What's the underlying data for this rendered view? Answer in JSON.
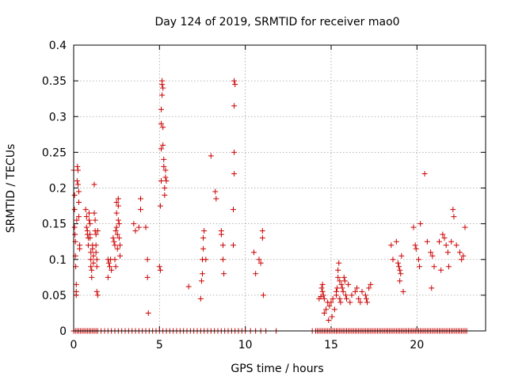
{
  "chart_data": {
    "type": "scatter",
    "title": "Day 124 of 2019, SRMTID for receiver mao0",
    "xlabel": "GPS time / hours",
    "ylabel": "SRMTID / TECUs",
    "xlim": [
      0,
      24
    ],
    "ylim": [
      0,
      0.4
    ],
    "xticks": [
      0,
      5,
      10,
      15,
      20
    ],
    "yticks": [
      0,
      0.05,
      0.1,
      0.15,
      0.2,
      0.25,
      0.3,
      0.35,
      0.4
    ],
    "xtick_labels": [
      "0",
      "5",
      "10",
      "15",
      "20"
    ],
    "ytick_labels": [
      "0",
      "0.05",
      "0.1",
      "0.15",
      "0.2",
      "0.25",
      "0.3",
      "0.35",
      "0.4"
    ],
    "grid": true,
    "marker": "+",
    "color": "#cc0000",
    "series": [
      {
        "name": "SRMTID",
        "points": [
          [
            0.0,
            0.225
          ],
          [
            0.05,
            0.19
          ],
          [
            0.05,
            0.17
          ],
          [
            0.05,
            0.145
          ],
          [
            0.08,
            0.135
          ],
          [
            0.1,
            0.125
          ],
          [
            0.1,
            0.105
          ],
          [
            0.12,
            0.09
          ],
          [
            0.15,
            0.065
          ],
          [
            0.15,
            0.055
          ],
          [
            0.15,
            0.05
          ],
          [
            0.18,
            0.155
          ],
          [
            0.2,
            0.21
          ],
          [
            0.22,
            0.23
          ],
          [
            0.25,
            0.225
          ],
          [
            0.25,
            0.205
          ],
          [
            0.3,
            0.195
          ],
          [
            0.3,
            0.18
          ],
          [
            0.3,
            0.16
          ],
          [
            0.35,
            0.12
          ],
          [
            0.35,
            0.115
          ],
          [
            0.7,
            0.17
          ],
          [
            0.75,
            0.16
          ],
          [
            0.75,
            0.145
          ],
          [
            0.8,
            0.14
          ],
          [
            0.8,
            0.135
          ],
          [
            0.85,
            0.13
          ],
          [
            0.85,
            0.12
          ],
          [
            0.9,
            0.165
          ],
          [
            0.9,
            0.155
          ],
          [
            0.95,
            0.15
          ],
          [
            0.95,
            0.135
          ],
          [
            0.95,
            0.13
          ],
          [
            1.0,
            0.11
          ],
          [
            1.0,
            0.1
          ],
          [
            1.0,
            0.09
          ],
          [
            1.05,
            0.085
          ],
          [
            1.05,
            0.075
          ],
          [
            1.1,
            0.12
          ],
          [
            1.1,
            0.115
          ],
          [
            1.15,
            0.105
          ],
          [
            1.15,
            0.095
          ],
          [
            1.2,
            0.205
          ],
          [
            1.2,
            0.165
          ],
          [
            1.25,
            0.155
          ],
          [
            1.25,
            0.14
          ],
          [
            1.3,
            0.135
          ],
          [
            1.3,
            0.12
          ],
          [
            1.3,
            0.11
          ],
          [
            1.35,
            0.1
          ],
          [
            1.35,
            0.09
          ],
          [
            1.35,
            0.055
          ],
          [
            1.4,
            0.05
          ],
          [
            1.4,
            0.14
          ],
          [
            2.0,
            0.1
          ],
          [
            2.0,
            0.075
          ],
          [
            2.05,
            0.095
          ],
          [
            2.1,
            0.09
          ],
          [
            2.15,
            0.1
          ],
          [
            2.2,
            0.085
          ],
          [
            2.3,
            0.13
          ],
          [
            2.35,
            0.125
          ],
          [
            2.4,
            0.12
          ],
          [
            2.4,
            0.1
          ],
          [
            2.45,
            0.14
          ],
          [
            2.45,
            0.09
          ],
          [
            2.5,
            0.18
          ],
          [
            2.5,
            0.165
          ],
          [
            2.5,
            0.145
          ],
          [
            2.55,
            0.135
          ],
          [
            2.55,
            0.115
          ],
          [
            2.6,
            0.185
          ],
          [
            2.6,
            0.175
          ],
          [
            2.6,
            0.155
          ],
          [
            2.65,
            0.15
          ],
          [
            2.65,
            0.13
          ],
          [
            2.7,
            0.12
          ],
          [
            2.7,
            0.105
          ],
          [
            3.5,
            0.15
          ],
          [
            3.6,
            0.14
          ],
          [
            3.8,
            0.145
          ],
          [
            3.9,
            0.17
          ],
          [
            3.9,
            0.185
          ],
          [
            4.2,
            0.145
          ],
          [
            4.3,
            0.1
          ],
          [
            4.3,
            0.075
          ],
          [
            4.35,
            0.025
          ],
          [
            5.0,
            0.09
          ],
          [
            5.05,
            0.085
          ],
          [
            5.05,
            0.175
          ],
          [
            5.1,
            0.21
          ],
          [
            5.1,
            0.255
          ],
          [
            5.1,
            0.29
          ],
          [
            5.1,
            0.31
          ],
          [
            5.15,
            0.33
          ],
          [
            5.15,
            0.345
          ],
          [
            5.15,
            0.35
          ],
          [
            5.2,
            0.34
          ],
          [
            5.2,
            0.285
          ],
          [
            5.2,
            0.26
          ],
          [
            5.25,
            0.24
          ],
          [
            5.25,
            0.23
          ],
          [
            5.3,
            0.2
          ],
          [
            5.3,
            0.19
          ],
          [
            5.35,
            0.225
          ],
          [
            5.35,
            0.215
          ],
          [
            5.4,
            0.21
          ],
          [
            6.7,
            0.062
          ],
          [
            7.4,
            0.045
          ],
          [
            7.45,
            0.07
          ],
          [
            7.5,
            0.08
          ],
          [
            7.5,
            0.1
          ],
          [
            7.55,
            0.115
          ],
          [
            7.55,
            0.13
          ],
          [
            7.6,
            0.14
          ],
          [
            7.7,
            0.1
          ],
          [
            8.0,
            0.245
          ],
          [
            8.25,
            0.195
          ],
          [
            8.3,
            0.185
          ],
          [
            8.6,
            0.14
          ],
          [
            8.6,
            0.135
          ],
          [
            8.7,
            0.12
          ],
          [
            8.7,
            0.1
          ],
          [
            8.75,
            0.08
          ],
          [
            9.3,
            0.17
          ],
          [
            9.3,
            0.12
          ],
          [
            9.35,
            0.22
          ],
          [
            9.35,
            0.25
          ],
          [
            9.35,
            0.315
          ],
          [
            9.35,
            0.35
          ],
          [
            9.4,
            0.345
          ],
          [
            10.5,
            0.11
          ],
          [
            10.6,
            0.08
          ],
          [
            10.8,
            0.1
          ],
          [
            10.9,
            0.095
          ],
          [
            11.0,
            0.14
          ],
          [
            11.0,
            0.13
          ],
          [
            11.05,
            0.05
          ],
          [
            14.3,
            0.045
          ],
          [
            14.4,
            0.048
          ],
          [
            14.45,
            0.06
          ],
          [
            14.5,
            0.065
          ],
          [
            14.5,
            0.055
          ],
          [
            14.55,
            0.05
          ],
          [
            14.6,
            0.045
          ],
          [
            14.6,
            0.025
          ],
          [
            14.7,
            0.03
          ],
          [
            14.8,
            0.04
          ],
          [
            14.85,
            0.015
          ],
          [
            14.9,
            0.035
          ],
          [
            15.0,
            0.04
          ],
          [
            15.05,
            0.02
          ],
          [
            15.1,
            0.045
          ],
          [
            15.2,
            0.03
          ],
          [
            15.3,
            0.055
          ],
          [
            15.3,
            0.05
          ],
          [
            15.35,
            0.06
          ],
          [
            15.4,
            0.085
          ],
          [
            15.4,
            0.075
          ],
          [
            15.45,
            0.095
          ],
          [
            15.5,
            0.07
          ],
          [
            15.5,
            0.045
          ],
          [
            15.55,
            0.04
          ],
          [
            15.6,
            0.065
          ],
          [
            15.65,
            0.06
          ],
          [
            15.7,
            0.055
          ],
          [
            15.75,
            0.075
          ],
          [
            15.8,
            0.07
          ],
          [
            15.85,
            0.05
          ],
          [
            15.9,
            0.045
          ],
          [
            16.0,
            0.065
          ],
          [
            16.1,
            0.04
          ],
          [
            16.2,
            0.05
          ],
          [
            16.4,
            0.055
          ],
          [
            16.5,
            0.06
          ],
          [
            16.6,
            0.045
          ],
          [
            16.7,
            0.04
          ],
          [
            16.8,
            0.055
          ],
          [
            17.0,
            0.05
          ],
          [
            17.05,
            0.045
          ],
          [
            17.1,
            0.04
          ],
          [
            17.2,
            0.06
          ],
          [
            17.3,
            0.065
          ],
          [
            18.5,
            0.12
          ],
          [
            18.6,
            0.1
          ],
          [
            18.8,
            0.125
          ],
          [
            18.9,
            0.095
          ],
          [
            18.95,
            0.09
          ],
          [
            19.0,
            0.085
          ],
          [
            19.0,
            0.07
          ],
          [
            19.05,
            0.08
          ],
          [
            19.1,
            0.105
          ],
          [
            19.2,
            0.055
          ],
          [
            19.8,
            0.145
          ],
          [
            19.9,
            0.12
          ],
          [
            19.95,
            0.115
          ],
          [
            20.1,
            0.1
          ],
          [
            20.15,
            0.09
          ],
          [
            20.2,
            0.15
          ],
          [
            20.45,
            0.22
          ],
          [
            20.6,
            0.125
          ],
          [
            20.8,
            0.11
          ],
          [
            20.85,
            0.06
          ],
          [
            20.9,
            0.105
          ],
          [
            21.0,
            0.09
          ],
          [
            21.3,
            0.125
          ],
          [
            21.4,
            0.085
          ],
          [
            21.5,
            0.135
          ],
          [
            21.6,
            0.13
          ],
          [
            21.7,
            0.12
          ],
          [
            21.8,
            0.11
          ],
          [
            21.85,
            0.09
          ],
          [
            22.0,
            0.125
          ],
          [
            22.1,
            0.17
          ],
          [
            22.15,
            0.16
          ],
          [
            22.3,
            0.12
          ],
          [
            22.5,
            0.11
          ],
          [
            22.6,
            0.1
          ],
          [
            22.7,
            0.105
          ],
          [
            22.8,
            0.145
          ]
        ],
        "zero_points": [
          0.0,
          0.1,
          0.2,
          0.3,
          0.4,
          0.5,
          0.6,
          0.7,
          0.8,
          0.9,
          1.0,
          1.1,
          1.2,
          1.3,
          1.4,
          1.6,
          1.8,
          2.0,
          2.2,
          2.4,
          2.6,
          2.8,
          3.0,
          3.2,
          3.4,
          3.6,
          3.8,
          4.0,
          4.2,
          4.4,
          4.6,
          4.8,
          5.0,
          5.2,
          5.4,
          5.6,
          5.8,
          6.0,
          6.2,
          6.4,
          6.6,
          6.8,
          7.0,
          7.2,
          7.4,
          7.6,
          7.8,
          8.0,
          8.2,
          8.4,
          8.6,
          8.8,
          9.0,
          9.2,
          9.4,
          9.6,
          9.8,
          10.0,
          10.3,
          10.6,
          10.9,
          11.2,
          11.8,
          13.9,
          14.1,
          14.2,
          14.3,
          14.4,
          14.5,
          14.6,
          14.7,
          14.8,
          14.9,
          15.0,
          15.1,
          15.2,
          15.3,
          15.4,
          15.5,
          15.6,
          15.7,
          15.8,
          15.9,
          16.0,
          16.1,
          16.2,
          16.3,
          16.4,
          16.5,
          16.6,
          16.7,
          16.8,
          16.9,
          17.0,
          17.1,
          17.2,
          17.3,
          17.4,
          17.5,
          17.6,
          17.7,
          17.8,
          17.9,
          18.0,
          18.1,
          18.2,
          18.3,
          18.4,
          18.5,
          18.6,
          18.7,
          18.8,
          18.9,
          19.0,
          19.1,
          19.2,
          19.3,
          19.4,
          19.5,
          19.6,
          19.7,
          19.8,
          19.9,
          20.0,
          20.1,
          20.2,
          20.3,
          20.4,
          20.5,
          20.6,
          20.7,
          20.8,
          20.9,
          21.0,
          21.1,
          21.2,
          21.3,
          21.4,
          21.5,
          21.6,
          21.7,
          21.8,
          21.9,
          22.0,
          22.1,
          22.2,
          22.3,
          22.4,
          22.5,
          22.6,
          22.7,
          22.8,
          22.9
        ]
      }
    ]
  }
}
